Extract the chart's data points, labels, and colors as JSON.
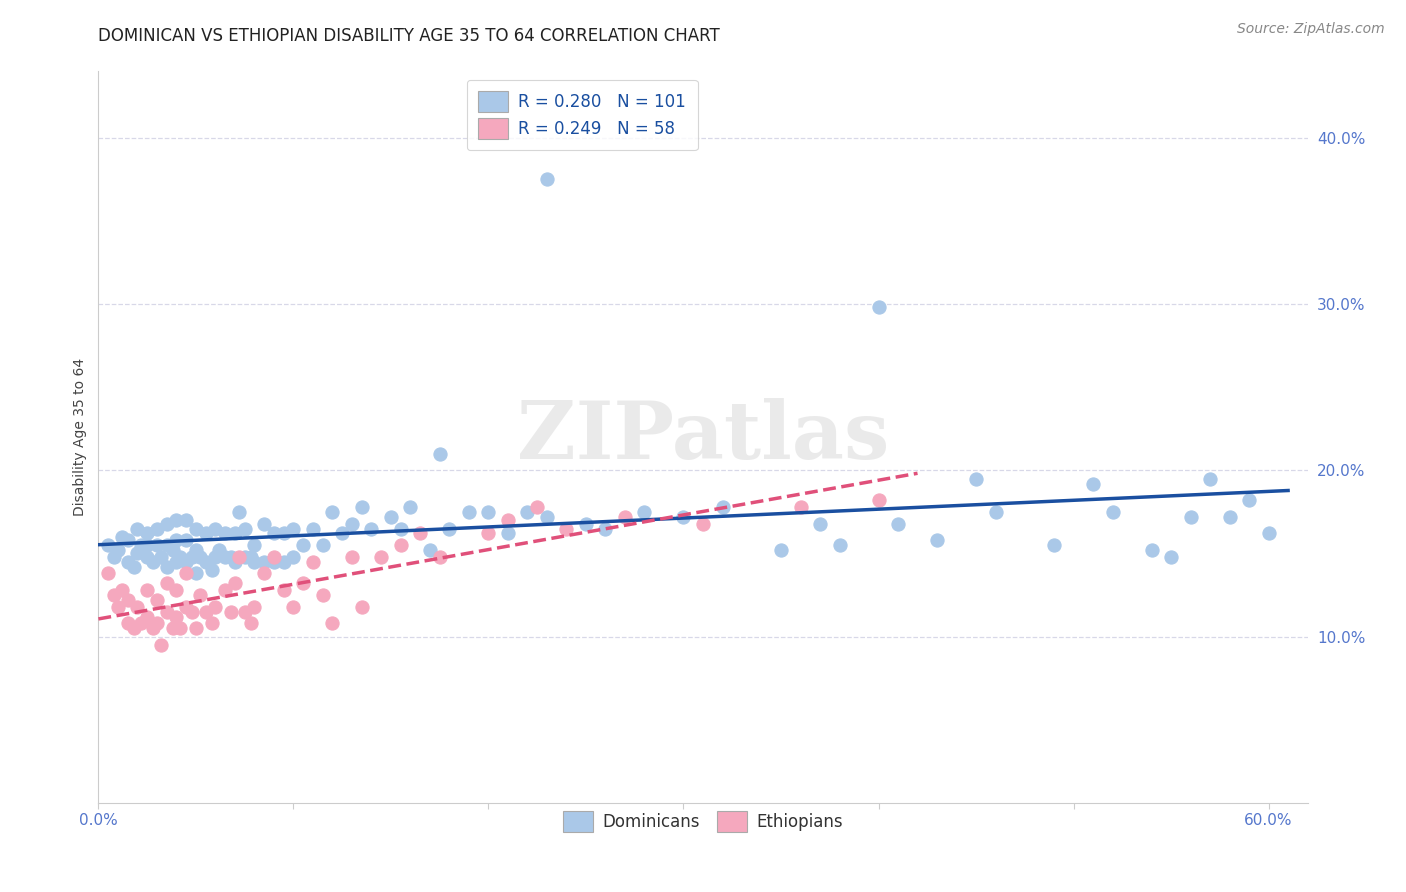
{
  "title": "DOMINICAN VS ETHIOPIAN DISABILITY AGE 35 TO 64 CORRELATION CHART",
  "source": "Source: ZipAtlas.com",
  "ylabel": "Disability Age 35 to 64",
  "xlim": [
    0.0,
    0.62
  ],
  "ylim": [
    0.0,
    0.44
  ],
  "xticks": [
    0.0,
    0.1,
    0.2,
    0.3,
    0.4,
    0.5,
    0.6
  ],
  "yticks": [
    0.1,
    0.2,
    0.3,
    0.4
  ],
  "xticklabels_first": "0.0%",
  "xticklabels_last": "60.0%",
  "yticklabels": [
    "10.0%",
    "20.0%",
    "30.0%",
    "40.0%"
  ],
  "dominican_color": "#aac8e8",
  "ethiopian_color": "#f5a8be",
  "trendline_dominican_color": "#1a4fa0",
  "trendline_ethiopian_color": "#e0507a",
  "watermark": "ZIPatlas",
  "legend_R_dominican": "0.280",
  "legend_N_dominican": "101",
  "legend_R_ethiopian": "0.249",
  "legend_N_ethiopian": "58",
  "dominican_x": [
    0.005,
    0.008,
    0.01,
    0.012,
    0.015,
    0.015,
    0.018,
    0.02,
    0.02,
    0.022,
    0.025,
    0.025,
    0.025,
    0.028,
    0.03,
    0.03,
    0.032,
    0.035,
    0.035,
    0.035,
    0.038,
    0.04,
    0.04,
    0.04,
    0.042,
    0.045,
    0.045,
    0.045,
    0.048,
    0.05,
    0.05,
    0.05,
    0.052,
    0.055,
    0.055,
    0.058,
    0.06,
    0.06,
    0.062,
    0.065,
    0.065,
    0.068,
    0.07,
    0.07,
    0.072,
    0.075,
    0.075,
    0.078,
    0.08,
    0.08,
    0.085,
    0.085,
    0.09,
    0.09,
    0.095,
    0.095,
    0.1,
    0.1,
    0.105,
    0.11,
    0.115,
    0.12,
    0.125,
    0.13,
    0.135,
    0.14,
    0.15,
    0.155,
    0.16,
    0.17,
    0.175,
    0.18,
    0.19,
    0.2,
    0.21,
    0.22,
    0.23,
    0.25,
    0.26,
    0.28,
    0.3,
    0.32,
    0.35,
    0.37,
    0.38,
    0.4,
    0.41,
    0.43,
    0.45,
    0.46,
    0.49,
    0.51,
    0.52,
    0.54,
    0.55,
    0.56,
    0.57,
    0.58,
    0.59,
    0.6,
    0.23
  ],
  "dominican_y": [
    0.155,
    0.148,
    0.152,
    0.16,
    0.145,
    0.158,
    0.142,
    0.15,
    0.165,
    0.155,
    0.148,
    0.155,
    0.162,
    0.145,
    0.155,
    0.165,
    0.148,
    0.142,
    0.155,
    0.168,
    0.152,
    0.145,
    0.158,
    0.17,
    0.148,
    0.145,
    0.158,
    0.17,
    0.148,
    0.138,
    0.152,
    0.165,
    0.148,
    0.145,
    0.162,
    0.14,
    0.148,
    0.165,
    0.152,
    0.148,
    0.162,
    0.148,
    0.145,
    0.162,
    0.175,
    0.148,
    0.165,
    0.148,
    0.145,
    0.155,
    0.145,
    0.168,
    0.145,
    0.162,
    0.145,
    0.162,
    0.148,
    0.165,
    0.155,
    0.165,
    0.155,
    0.175,
    0.162,
    0.168,
    0.178,
    0.165,
    0.172,
    0.165,
    0.178,
    0.152,
    0.21,
    0.165,
    0.175,
    0.175,
    0.162,
    0.175,
    0.172,
    0.168,
    0.165,
    0.175,
    0.172,
    0.178,
    0.152,
    0.168,
    0.155,
    0.298,
    0.168,
    0.158,
    0.195,
    0.175,
    0.155,
    0.192,
    0.175,
    0.152,
    0.148,
    0.172,
    0.195,
    0.172,
    0.182,
    0.162,
    0.375
  ],
  "ethiopian_x": [
    0.005,
    0.008,
    0.01,
    0.012,
    0.015,
    0.015,
    0.018,
    0.02,
    0.022,
    0.025,
    0.025,
    0.028,
    0.03,
    0.03,
    0.032,
    0.035,
    0.035,
    0.038,
    0.04,
    0.04,
    0.042,
    0.045,
    0.045,
    0.048,
    0.05,
    0.052,
    0.055,
    0.058,
    0.06,
    0.065,
    0.068,
    0.07,
    0.072,
    0.075,
    0.078,
    0.08,
    0.085,
    0.09,
    0.095,
    0.1,
    0.105,
    0.11,
    0.115,
    0.12,
    0.13,
    0.135,
    0.145,
    0.155,
    0.165,
    0.175,
    0.2,
    0.21,
    0.225,
    0.24,
    0.27,
    0.31,
    0.36,
    0.4
  ],
  "ethiopian_y": [
    0.138,
    0.125,
    0.118,
    0.128,
    0.108,
    0.122,
    0.105,
    0.118,
    0.108,
    0.112,
    0.128,
    0.105,
    0.108,
    0.122,
    0.095,
    0.115,
    0.132,
    0.105,
    0.112,
    0.128,
    0.105,
    0.118,
    0.138,
    0.115,
    0.105,
    0.125,
    0.115,
    0.108,
    0.118,
    0.128,
    0.115,
    0.132,
    0.148,
    0.115,
    0.108,
    0.118,
    0.138,
    0.148,
    0.128,
    0.118,
    0.132,
    0.145,
    0.125,
    0.108,
    0.148,
    0.118,
    0.148,
    0.155,
    0.162,
    0.148,
    0.162,
    0.17,
    0.178,
    0.165,
    0.172,
    0.168,
    0.178,
    0.182
  ],
  "background_color": "#ffffff",
  "grid_color": "#d8d8e8",
  "title_fontsize": 12,
  "axis_label_fontsize": 10,
  "tick_fontsize": 11,
  "legend_fontsize": 12,
  "source_fontsize": 10
}
